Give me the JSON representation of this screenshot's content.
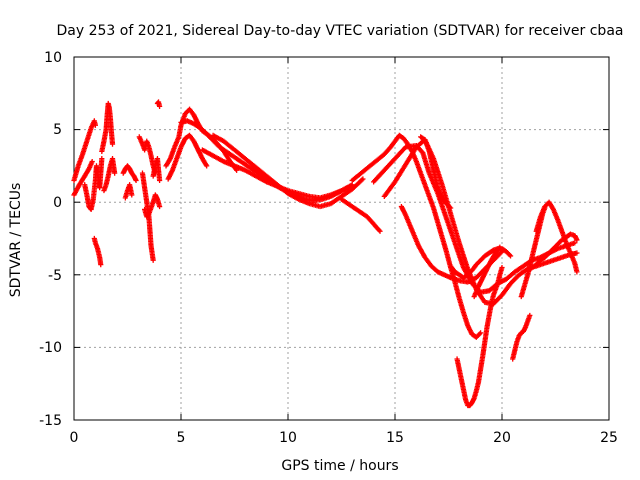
{
  "chart_data": {
    "type": "scatter",
    "title": "Day 253 of 2021, Sidereal Day-to-day VTEC variation (SDTVAR) for receiver cbaa",
    "xlabel": "GPS time / hours",
    "ylabel": "SDTVAR / TECUs",
    "xlim": [
      0,
      25
    ],
    "ylim": [
      -15,
      10
    ],
    "xticks": [
      "0",
      "5",
      "10",
      "15",
      "20",
      "25"
    ],
    "yticks": [
      "10",
      "5",
      "0",
      "-5",
      "-10",
      "-15"
    ],
    "grid": true,
    "marker": "+",
    "color": "#ff0000",
    "series": [
      {
        "name": "t0",
        "x": [
          0.0,
          0.2,
          0.4,
          0.6,
          0.8,
          0.95,
          1.0
        ],
        "y": [
          1.5,
          2.5,
          3.3,
          4.2,
          5.1,
          5.6,
          5.3
        ]
      },
      {
        "name": "t0b",
        "x": [
          0.0,
          0.25,
          0.5,
          0.7,
          0.85
        ],
        "y": [
          0.5,
          1.2,
          1.8,
          2.3,
          2.8
        ]
      },
      {
        "name": "t1",
        "x": [
          0.5,
          0.6,
          0.7,
          0.8,
          0.9,
          1.0,
          1.05,
          1.1,
          1.2,
          1.25,
          1.3
        ],
        "y": [
          1.2,
          0.5,
          -0.3,
          -0.5,
          0.2,
          1.5,
          2.5,
          2.0,
          1.0,
          2.0,
          3.0
        ]
      },
      {
        "name": "t2",
        "x": [
          0.95,
          1.0,
          1.05,
          1.1,
          1.15,
          1.2,
          1.25
        ],
        "y": [
          -2.5,
          -2.8,
          -3.0,
          -3.2,
          -3.5,
          -3.8,
          -4.3
        ]
      },
      {
        "name": "t3",
        "x": [
          1.3,
          1.4,
          1.5,
          1.55,
          1.6,
          1.65,
          1.7,
          1.75,
          1.8
        ],
        "y": [
          3.5,
          4.2,
          5.0,
          6.0,
          6.8,
          6.5,
          5.8,
          4.8,
          4.0
        ]
      },
      {
        "name": "t4",
        "x": [
          1.4,
          1.5,
          1.6,
          1.7,
          1.8,
          1.85,
          1.9
        ],
        "y": [
          0.8,
          1.2,
          1.8,
          2.5,
          3.0,
          2.5,
          2.0
        ]
      },
      {
        "name": "t5",
        "x": [
          2.3,
          2.4,
          2.5,
          2.6,
          2.7,
          2.8,
          2.9
        ],
        "y": [
          2.0,
          2.3,
          2.5,
          2.3,
          2.0,
          1.8,
          1.5
        ]
      },
      {
        "name": "t5b",
        "x": [
          2.4,
          2.5,
          2.6,
          2.7
        ],
        "y": [
          0.3,
          0.8,
          1.2,
          0.5
        ]
      },
      {
        "name": "t6",
        "x": [
          3.05,
          3.2,
          3.3,
          3.4,
          3.5,
          3.6,
          3.7,
          3.8
        ],
        "y": [
          4.5,
          4.0,
          3.6,
          4.2,
          3.8,
          3.2,
          2.5,
          2.0
        ]
      },
      {
        "name": "t7",
        "x": [
          3.2,
          3.3,
          3.4,
          3.5,
          3.55,
          3.6,
          3.65,
          3.7
        ],
        "y": [
          2.0,
          1.0,
          0.0,
          -1.0,
          -2.0,
          -3.0,
          -3.5,
          -4.0
        ]
      },
      {
        "name": "t8",
        "x": [
          3.3,
          3.4,
          3.5,
          3.6,
          3.7,
          3.8,
          3.9,
          4.0
        ],
        "y": [
          -0.5,
          -1.0,
          -0.8,
          -0.4,
          0.0,
          0.5,
          0.2,
          -0.3
        ]
      },
      {
        "name": "t8b",
        "x": [
          3.7,
          3.8,
          3.9,
          3.95,
          4.0
        ],
        "y": [
          1.8,
          2.5,
          3.0,
          2.2,
          1.5
        ]
      },
      {
        "name": "t9",
        "x": [
          3.9,
          3.95,
          4.0
        ],
        "y": [
          6.8,
          6.9,
          6.6
        ]
      },
      {
        "name": "t10",
        "x": [
          4.3,
          4.5,
          4.7,
          4.9,
          5.0,
          5.2,
          5.4,
          5.6,
          5.8,
          6.0,
          6.3,
          6.6,
          7.0,
          7.3,
          7.6
        ],
        "y": [
          2.5,
          3.0,
          3.8,
          4.5,
          5.3,
          6.1,
          6.4,
          6.0,
          5.4,
          4.9,
          4.6,
          4.2,
          3.5,
          2.8,
          2.2
        ]
      },
      {
        "name": "t11",
        "x": [
          4.4,
          4.6,
          4.8,
          5.0,
          5.2,
          5.4,
          5.6,
          5.8,
          6.0,
          6.2
        ],
        "y": [
          1.6,
          2.2,
          3.0,
          3.8,
          4.4,
          4.6,
          4.2,
          3.6,
          3.0,
          2.5
        ]
      },
      {
        "name": "t12",
        "x": [
          5.0,
          5.3,
          5.6,
          6.0,
          6.4,
          6.8,
          7.2,
          7.6,
          8.0,
          8.4,
          8.8,
          9.2,
          9.6,
          10.0,
          10.4,
          10.8,
          11.2,
          11.6,
          12.0,
          12.4,
          12.8
        ],
        "y": [
          5.5,
          5.6,
          5.4,
          5.0,
          4.4,
          3.8,
          3.4,
          3.0,
          2.6,
          2.2,
          1.8,
          1.4,
          1.0,
          0.7,
          0.4,
          0.2,
          0.1,
          0.2,
          0.4,
          0.7,
          1.0
        ]
      },
      {
        "name": "t13",
        "x": [
          6.0,
          6.5,
          7.0,
          7.5,
          8.0,
          8.5,
          9.0,
          9.5,
          10.0,
          10.5,
          11.0,
          11.5,
          12.0,
          12.5,
          13.0
        ],
        "y": [
          3.6,
          3.2,
          2.8,
          2.5,
          2.2,
          1.8,
          1.4,
          1.1,
          0.8,
          0.6,
          0.4,
          0.3,
          0.5,
          0.8,
          1.2
        ]
      },
      {
        "name": "t14",
        "x": [
          6.5,
          7.0,
          7.5,
          8.0,
          8.5,
          9.0,
          9.5,
          10.0,
          10.5,
          11.0,
          11.5,
          12.0,
          12.5,
          13.0,
          13.5
        ],
        "y": [
          4.6,
          4.2,
          3.6,
          3.0,
          2.4,
          1.8,
          1.2,
          0.6,
          0.2,
          -0.1,
          -0.3,
          -0.1,
          0.4,
          0.9,
          1.6
        ]
      },
      {
        "name": "t15",
        "x": [
          12.5,
          12.9,
          13.3,
          13.7,
          14.0,
          14.3
        ],
        "y": [
          0.2,
          -0.2,
          -0.6,
          -1.0,
          -1.5,
          -2.0
        ]
      },
      {
        "name": "t16",
        "x": [
          13.0,
          13.5,
          14.0,
          14.5,
          14.8,
          15.0,
          15.2,
          15.4,
          15.6,
          15.8,
          16.0,
          16.2,
          16.4,
          16.6,
          16.8,
          17.0,
          17.2,
          17.4,
          17.6,
          17.8,
          18.0,
          18.2,
          18.4,
          18.6,
          18.8,
          19.0
        ],
        "y": [
          1.5,
          2.1,
          2.7,
          3.3,
          3.8,
          4.2,
          4.6,
          4.4,
          4.0,
          3.5,
          2.8,
          2.0,
          1.2,
          0.4,
          -0.4,
          -1.4,
          -2.4,
          -3.4,
          -4.5,
          -5.5,
          -6.6,
          -7.6,
          -8.5,
          -9.1,
          -9.3,
          -9.0
        ]
      },
      {
        "name": "t17",
        "x": [
          14.0,
          14.5,
          15.0,
          15.5,
          16.0,
          16.3,
          16.6,
          17.0,
          17.4,
          17.8,
          18.2,
          18.6,
          19.0,
          19.4,
          19.8,
          20.2,
          20.6,
          21.0,
          21.4,
          21.8,
          22.2,
          22.6,
          23.0,
          23.4
        ],
        "y": [
          1.4,
          2.2,
          3.0,
          3.8,
          3.9,
          3.4,
          2.0,
          0.6,
          -1.1,
          -2.8,
          -4.5,
          -5.6,
          -6.2,
          -6.1,
          -5.6,
          -5.3,
          -4.8,
          -4.4,
          -4.0,
          -3.8,
          -3.5,
          -3.2,
          -3.0,
          -2.8
        ]
      },
      {
        "name": "t18",
        "x": [
          14.5,
          15.0,
          15.5,
          16.0,
          16.4,
          16.8,
          17.2,
          17.6,
          18.0,
          18.4,
          18.8,
          19.2,
          19.6,
          20.0,
          20.4,
          20.8,
          21.2,
          21.6,
          22.0,
          22.4,
          22.8,
          23.2,
          23.5
        ],
        "y": [
          0.4,
          1.4,
          2.6,
          3.8,
          4.3,
          3.0,
          1.2,
          -0.8,
          -2.8,
          -4.6,
          -6.0,
          -6.9,
          -7.0,
          -6.4,
          -5.6,
          -5.0,
          -4.6,
          -4.4,
          -4.2,
          -4.0,
          -3.8,
          -3.6,
          -3.5
        ]
      },
      {
        "name": "t19",
        "x": [
          15.3,
          15.5,
          15.7,
          15.9,
          16.1,
          16.4,
          16.7,
          17.0,
          17.3,
          17.6,
          18.0,
          18.4,
          18.8,
          19.2,
          19.6,
          20.0
        ],
        "y": [
          -0.3,
          -0.9,
          -1.6,
          -2.3,
          -3.0,
          -3.8,
          -4.4,
          -4.8,
          -5.0,
          -5.2,
          -5.4,
          -5.5,
          -5.2,
          -4.6,
          -4.0,
          -3.4
        ]
      },
      {
        "name": "t20",
        "x": [
          16.2,
          16.4,
          16.6,
          16.8,
          17.0,
          17.2,
          17.4,
          17.6
        ],
        "y": [
          4.5,
          4.3,
          3.5,
          2.2,
          1.0,
          0.3,
          -0.1,
          -0.4
        ]
      },
      {
        "name": "t21",
        "x": [
          17.6,
          17.8,
          18.0,
          18.2,
          18.4,
          18.6,
          18.8,
          19.0,
          19.2,
          19.4,
          19.6,
          19.8,
          20.0,
          20.2,
          20.4
        ],
        "y": [
          -4.4,
          -4.8,
          -5.0,
          -5.2,
          -5.0,
          -4.7,
          -4.3,
          -4.0,
          -3.7,
          -3.5,
          -3.3,
          -3.2,
          -3.2,
          -3.4,
          -3.7
        ]
      },
      {
        "name": "t22",
        "x": [
          17.9,
          18.0,
          18.1,
          18.2,
          18.3,
          18.4,
          18.5,
          18.6,
          18.7,
          18.8,
          18.9,
          19.0,
          19.1,
          19.2,
          19.3,
          19.4,
          19.5,
          19.6,
          19.7,
          19.8,
          19.9,
          20.0
        ],
        "y": [
          -10.8,
          -11.5,
          -12.2,
          -12.9,
          -13.6,
          -14.0,
          -14.0,
          -13.8,
          -13.5,
          -13.0,
          -12.4,
          -11.5,
          -10.6,
          -9.6,
          -8.6,
          -7.8,
          -7.0,
          -6.4,
          -6.0,
          -5.6,
          -5.0,
          -4.5
        ]
      },
      {
        "name": "t23",
        "x": [
          18.7,
          18.9,
          19.1,
          19.3,
          19.5,
          19.7,
          19.9
        ],
        "y": [
          -6.5,
          -5.8,
          -5.2,
          -4.6,
          -4.0,
          -3.5,
          -3.1
        ]
      },
      {
        "name": "t24",
        "x": [
          20.5,
          20.6,
          20.7,
          20.8,
          20.9,
          21.0,
          21.1,
          21.2,
          21.3
        ],
        "y": [
          -10.8,
          -10.2,
          -9.6,
          -9.2,
          -9.0,
          -8.9,
          -8.6,
          -8.2,
          -7.8
        ]
      },
      {
        "name": "t25",
        "x": [
          20.9,
          21.0,
          21.1,
          21.2,
          21.3,
          21.4,
          21.5,
          21.6,
          21.7,
          21.8,
          21.9,
          22.0
        ],
        "y": [
          -6.5,
          -6.0,
          -5.5,
          -5.0,
          -4.4,
          -3.8,
          -3.2,
          -2.6,
          -2.0,
          -1.4,
          -0.8,
          -0.4
        ]
      },
      {
        "name": "t26",
        "x": [
          21.6,
          21.8,
          22.0,
          22.2,
          22.4,
          22.6,
          22.8,
          23.0,
          23.2,
          23.4,
          23.5
        ],
        "y": [
          -2.0,
          -1.0,
          -0.3,
          0.0,
          -0.5,
          -1.2,
          -2.0,
          -2.8,
          -3.5,
          -4.2,
          -4.8
        ]
      },
      {
        "name": "t27",
        "x": [
          21.2,
          21.4,
          21.6,
          21.8,
          22.0,
          22.2,
          22.4,
          22.6,
          22.8,
          23.0,
          23.2,
          23.4,
          23.5
        ],
        "y": [
          -4.8,
          -4.5,
          -4.3,
          -4.0,
          -3.8,
          -3.5,
          -3.2,
          -2.9,
          -2.6,
          -2.4,
          -2.2,
          -2.3,
          -2.6
        ]
      }
    ]
  }
}
